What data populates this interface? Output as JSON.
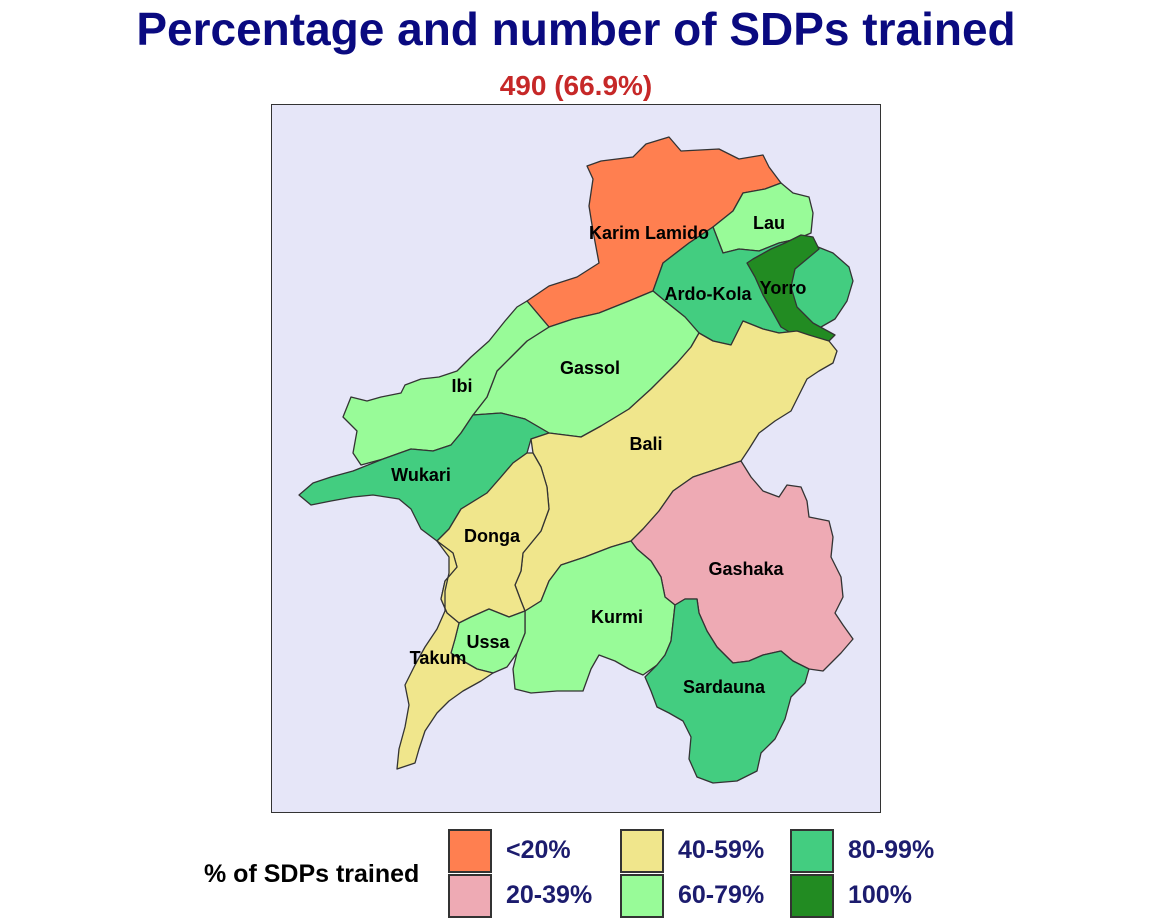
{
  "title": "Percentage and number of SDPs trained",
  "subtitle": "490 (66.9%)",
  "subtitle_color": "#c62828",
  "title_color": "#0a0a80",
  "map_background": "#e6e6f8",
  "regions": [
    {
      "name": "Karim Lamido",
      "category": "<20%",
      "fill": "#ff7f50"
    },
    {
      "name": "Lau",
      "category": "60-79%",
      "fill": "#98fb98"
    },
    {
      "name": "Yorro",
      "category": "100%",
      "fill": "#228b22"
    },
    {
      "name": "Ardo-Kola",
      "category": "80-99%",
      "fill": "#43cd80"
    },
    {
      "name": "Gassol",
      "category": "60-79%",
      "fill": "#98fb98"
    },
    {
      "name": "Ibi",
      "category": "60-79%",
      "fill": "#98fb98"
    },
    {
      "name": "Bali",
      "category": "40-59%",
      "fill": "#f0e68c"
    },
    {
      "name": "Wukari",
      "category": "80-99%",
      "fill": "#43cd80"
    },
    {
      "name": "Donga",
      "category": "40-59%",
      "fill": "#f0e68c"
    },
    {
      "name": "Gashaka",
      "category": "20-39%",
      "fill": "#eeaab4"
    },
    {
      "name": "Kurmi",
      "category": "60-79%",
      "fill": "#98fb98"
    },
    {
      "name": "Ussa",
      "category": "60-79%",
      "fill": "#98fb98"
    },
    {
      "name": "Takum",
      "category": "40-59%",
      "fill": "#f0e68c"
    },
    {
      "name": "Sardauna",
      "category": "80-99%",
      "fill": "#43cd80"
    }
  ],
  "legend": {
    "title": "% of SDPs trained",
    "items": [
      {
        "label": "<20%",
        "color": "#ff7f50"
      },
      {
        "label": "20-39%",
        "color": "#eeaab4"
      },
      {
        "label": "40-59%",
        "color": "#f0e68c"
      },
      {
        "label": "60-79%",
        "color": "#98fb98"
      },
      {
        "label": "80-99%",
        "color": "#43cd80"
      },
      {
        "label": "100%",
        "color": "#228b22"
      }
    ]
  }
}
